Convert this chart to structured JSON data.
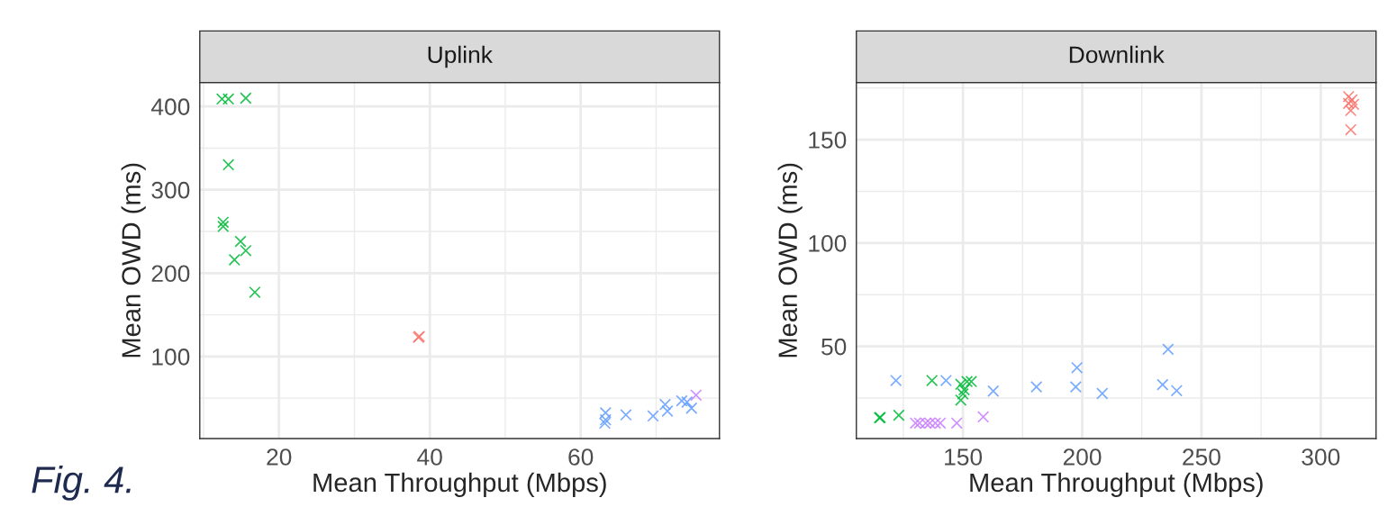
{
  "chart_data": [
    {
      "type": "scatter",
      "title": "Uplink",
      "xlabel": "Mean Throughput (Mbps)",
      "ylabel": "Mean OWD (ms)",
      "xlim": [
        9.5,
        78.4
      ],
      "ylim": [
        1.5,
        428.6
      ],
      "xticks": [
        20,
        40,
        60
      ],
      "yticks": [
        100,
        200,
        300,
        400
      ],
      "grid": true,
      "marker": "cross",
      "annotations": [
        "Fig. 4."
      ],
      "series": [
        {
          "color": "#f8766d",
          "x": [
            38.5,
            38.6
          ],
          "values": [
            123,
            124
          ]
        },
        {
          "color": "#00ba38",
          "x": [
            12.45,
            13.3,
            15.6,
            13.3,
            12.6,
            12.6,
            14.9,
            15.6,
            14.1,
            16.8
          ],
          "values": [
            408.9,
            408.9,
            409.9,
            330,
            261,
            256,
            238,
            227,
            216,
            177
          ]
        },
        {
          "color": "#619cff",
          "x": [
            63.3,
            63.3,
            63.2,
            66.0,
            69.6,
            71.2,
            71.5,
            73.4,
            74.1,
            74.7
          ],
          "values": [
            32.5,
            24,
            20,
            30,
            28.6,
            42.4,
            34.5,
            46.8,
            45.3,
            38
          ]
        },
        {
          "color": "#c77cff",
          "x": [
            75.3
          ],
          "values": [
            53.6
          ]
        }
      ]
    },
    {
      "type": "scatter",
      "title": "Downlink",
      "xlabel": "Mean Throughput (Mbps)",
      "ylabel": "Mean OWD (ms)",
      "xlim": [
        105.3,
        323.2
      ],
      "ylim": [
        5.4,
        177.6
      ],
      "xticks": [
        150,
        200,
        250,
        300
      ],
      "yticks": [
        50,
        100,
        150
      ],
      "grid": true,
      "marker": "cross",
      "series": [
        {
          "color": "#f8766d",
          "x": [
            311.7,
            313.1,
            311.7,
            313.8,
            312.6,
            312.6
          ],
          "values": [
            170.8,
            169.2,
            167.5,
            167.1,
            164.1,
            154.8
          ]
        },
        {
          "color": "#00ba38",
          "x": [
            115.0,
            115.3,
            123.1,
            137.0,
            149.1,
            150,
            150.5,
            149.1,
            151.7,
            153.5
          ],
          "values": [
            15.5,
            15.6,
            16.7,
            33.5,
            24,
            27,
            29,
            31.7,
            33,
            33
          ]
        },
        {
          "color": "#619cff",
          "x": [
            121.9,
            142.9,
            162.7,
            180.8,
            197.3,
            197.8,
            208.4,
            233.7,
            236,
            239.6
          ],
          "values": [
            33.5,
            33.5,
            28.4,
            30.4,
            30.4,
            39.7,
            27.2,
            31.5,
            48.6,
            28.6
          ]
        },
        {
          "color": "#c77cff",
          "x": [
            130.1,
            131.8,
            134.4,
            136.1,
            138.4,
            140.5,
            147.4,
            158.5
          ],
          "values": [
            12.9,
            12.9,
            12.9,
            12.9,
            12.9,
            12.9,
            12.9,
            15.9
          ]
        }
      ]
    }
  ]
}
